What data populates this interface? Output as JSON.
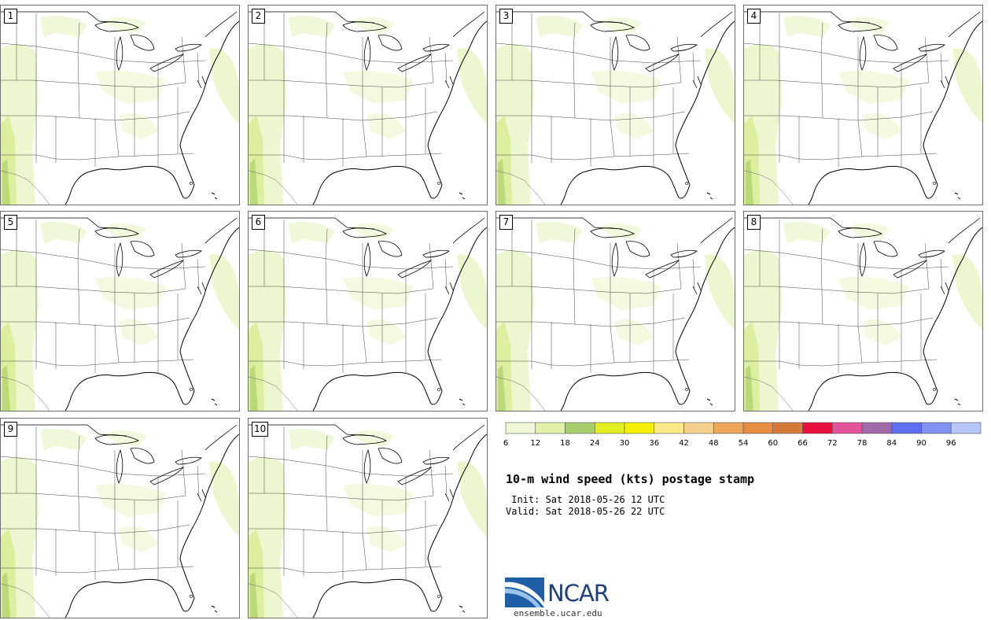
{
  "panels": [
    {
      "label": "1"
    },
    {
      "label": "2"
    },
    {
      "label": "3"
    },
    {
      "label": "4"
    },
    {
      "label": "5"
    },
    {
      "label": "6"
    },
    {
      "label": "7"
    },
    {
      "label": "8"
    },
    {
      "label": "9"
    },
    {
      "label": "10"
    }
  ],
  "colorbar": {
    "ticks": [
      "6",
      "12",
      "18",
      "24",
      "30",
      "36",
      "42",
      "48",
      "54",
      "60",
      "66",
      "72",
      "78",
      "84",
      "90",
      "96"
    ],
    "colors": [
      "#f0f7d6",
      "#dff2a8",
      "#a8cc6c",
      "#e1ee1f",
      "#f5f000",
      "#fbe98a",
      "#f5d08f",
      "#eea658",
      "#e48d43",
      "#d67a3c",
      "#e8103c",
      "#e4549c",
      "#a06aa8",
      "#5f6df0",
      "#7f93ee",
      "#b7c6f7"
    ]
  },
  "title": "10-m wind speed (kts) postage stamp",
  "init_text": " Init: Sat 2018-05-26 12 UTC",
  "valid_text": "Valid: Sat 2018-05-26 22 UTC",
  "logo": {
    "name": "NCAR",
    "url": "ensemble.ucar.edu"
  }
}
